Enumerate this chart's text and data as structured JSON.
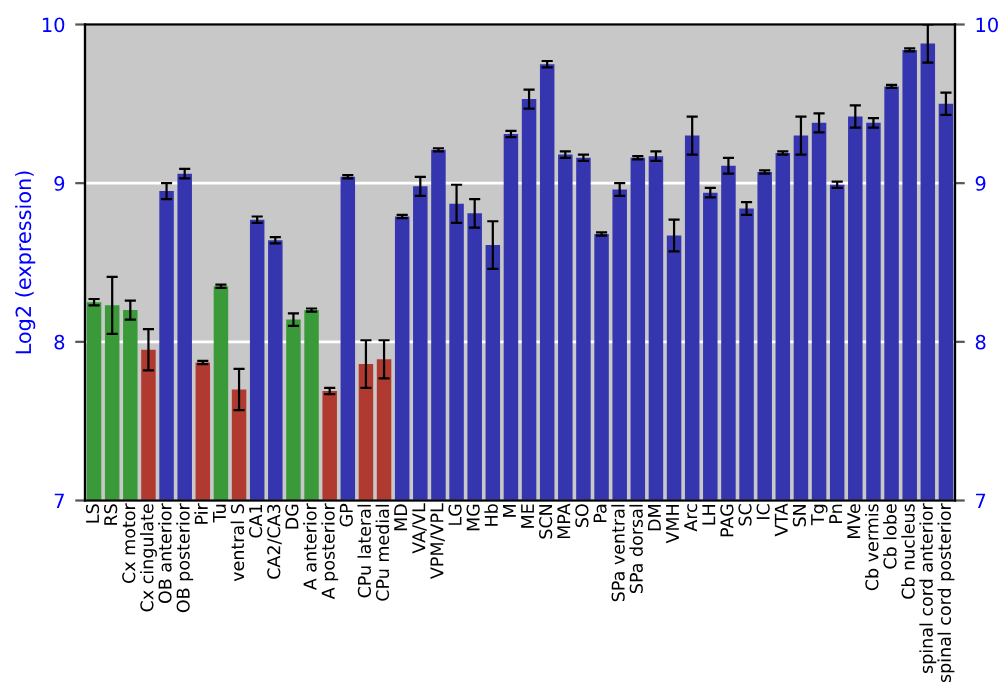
{
  "chart_data": {
    "type": "bar",
    "ylabel": "Log2 (expression)",
    "categories": [
      "LS",
      "RS",
      "Cx motor",
      "Cx cingulate",
      "OB anterior",
      "OB posterior",
      "Pir",
      "Tu",
      "ventral S",
      "CA1",
      "CA2/CA3",
      "DG",
      "A anterior",
      "A posterior",
      "GP",
      "CPu lateral",
      "CPu medial",
      "MD",
      "VA/VL",
      "VPM/VPL",
      "LG",
      "MG",
      "Hb",
      "M",
      "ME",
      "SCN",
      "MPA",
      "SO",
      "Pa",
      "SPa ventral",
      "SPa dorsal",
      "DM",
      "VMH",
      "Arc",
      "LH",
      "PAG",
      "SC",
      "IC",
      "VTA",
      "SN",
      "Tg",
      "Pn",
      "MVe",
      "Cb vermis",
      "Cb lobe",
      "Cb nucleus",
      "spinal cord anterior",
      "spinal cord posterior"
    ],
    "values": [
      8.25,
      8.23,
      8.2,
      7.95,
      8.95,
      9.06,
      7.87,
      8.35,
      7.7,
      8.77,
      8.64,
      8.14,
      8.2,
      7.69,
      9.04,
      7.86,
      7.89,
      8.79,
      8.98,
      9.21,
      8.87,
      8.81,
      8.61,
      9.31,
      9.53,
      9.75,
      9.18,
      9.16,
      8.68,
      8.96,
      9.16,
      9.17,
      8.67,
      9.3,
      8.94,
      9.11,
      8.84,
      9.07,
      9.19,
      9.3,
      9.38,
      8.99,
      9.42,
      9.38,
      9.61,
      9.84,
      9.88,
      9.5
    ],
    "errors": [
      0.02,
      0.18,
      0.06,
      0.13,
      0.05,
      0.03,
      0.01,
      0.01,
      0.13,
      0.02,
      0.02,
      0.04,
      0.01,
      0.02,
      0.01,
      0.15,
      0.12,
      0.01,
      0.06,
      0.01,
      0.12,
      0.09,
      0.15,
      0.02,
      0.06,
      0.02,
      0.02,
      0.02,
      0.01,
      0.04,
      0.01,
      0.03,
      0.1,
      0.12,
      0.03,
      0.05,
      0.04,
      0.01,
      0.01,
      0.12,
      0.06,
      0.02,
      0.07,
      0.03,
      0.01,
      0.01,
      0.12,
      0.07
    ],
    "colors": [
      "#3a9a3a",
      "#3a9a3a",
      "#3a9a3a",
      "#b03a30",
      "#3535b0",
      "#3535b0",
      "#b03a30",
      "#3a9a3a",
      "#b03a30",
      "#3535b0",
      "#3535b0",
      "#3a9a3a",
      "#3a9a3a",
      "#b03a30",
      "#3535b0",
      "#b03a30",
      "#b03a30",
      "#3535b0",
      "#3535b0",
      "#3535b0",
      "#3535b0",
      "#3535b0",
      "#3535b0",
      "#3535b0",
      "#3535b0",
      "#3535b0",
      "#3535b0",
      "#3535b0",
      "#3535b0",
      "#3535b0",
      "#3535b0",
      "#3535b0",
      "#3535b0",
      "#3535b0",
      "#3535b0",
      "#3535b0",
      "#3535b0",
      "#3535b0",
      "#3535b0",
      "#3535b0",
      "#3535b0",
      "#3535b0",
      "#3535b0",
      "#3535b0",
      "#3535b0",
      "#3535b0",
      "#3535b0",
      "#3535b0"
    ],
    "ylim": [
      7,
      10
    ],
    "yticks": [
      7,
      8,
      9,
      10
    ],
    "y2lim": [
      7,
      10
    ],
    "y2ticks": [
      7,
      8,
      9,
      10
    ],
    "grid": "y"
  }
}
